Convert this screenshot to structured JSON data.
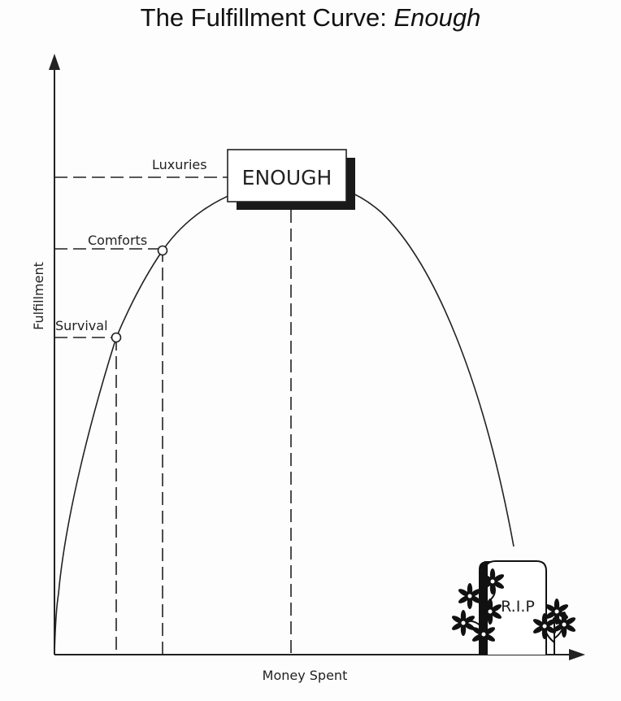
{
  "title": {
    "main": "The Fulfillment Curve: ",
    "emphasis": "Enough"
  },
  "axes": {
    "x_label": "Money Spent",
    "y_label": "Fulfillment"
  },
  "levels": [
    {
      "name": "survival",
      "label": "Survival"
    },
    {
      "name": "comforts",
      "label": "Comforts"
    },
    {
      "name": "luxuries",
      "label": "Luxuries"
    }
  ],
  "peak_label": "ENOUGH",
  "tombstone_label": "R.I.P",
  "colors": {
    "ink": "#222222",
    "background": "#fdfdfd"
  }
}
